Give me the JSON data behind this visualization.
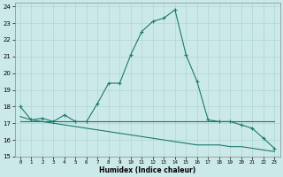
{
  "xlabel": "Humidex (Indice chaleur)",
  "xlim": [
    -0.5,
    23.5
  ],
  "ylim": [
    15,
    24.2
  ],
  "yticks": [
    15,
    16,
    17,
    18,
    19,
    20,
    21,
    22,
    23,
    24
  ],
  "xticks": [
    0,
    1,
    2,
    3,
    4,
    5,
    6,
    7,
    8,
    9,
    10,
    11,
    12,
    13,
    14,
    15,
    16,
    17,
    18,
    19,
    20,
    21,
    22,
    23
  ],
  "bg_color": "#cce9e9",
  "grid_color": "#afd4d4",
  "line_color": "#1a7a6e",
  "series": [
    {
      "x": [
        0,
        1,
        2,
        3,
        4,
        5,
        6,
        7,
        8,
        9,
        10,
        11,
        12,
        13,
        14,
        15,
        16,
        17,
        18,
        19,
        20,
        21,
        22,
        23
      ],
      "y": [
        18,
        17.2,
        17.3,
        17.1,
        17.5,
        17.1,
        17.1,
        18.2,
        19.4,
        19.4,
        21.1,
        22.5,
        23.1,
        23.3,
        23.8,
        21.1,
        19.5,
        17.2,
        17.1,
        17.1,
        16.9,
        16.7,
        16.1,
        15.5
      ],
      "marker": true
    },
    {
      "x": [
        0,
        23
      ],
      "y": [
        17.1,
        17.1
      ],
      "marker": false
    },
    {
      "x": [
        0,
        1,
        2,
        3,
        4,
        5,
        6,
        7,
        8,
        9,
        10,
        11,
        12,
        13,
        14,
        15,
        16,
        17,
        18,
        19,
        20,
        21,
        22,
        23
      ],
      "y": [
        17.4,
        17.2,
        17.1,
        17.0,
        16.9,
        16.8,
        16.7,
        16.6,
        16.5,
        16.4,
        16.3,
        16.2,
        16.1,
        16.0,
        15.9,
        15.8,
        15.7,
        15.7,
        15.7,
        15.6,
        15.6,
        15.5,
        15.4,
        15.3
      ],
      "marker": false
    }
  ]
}
